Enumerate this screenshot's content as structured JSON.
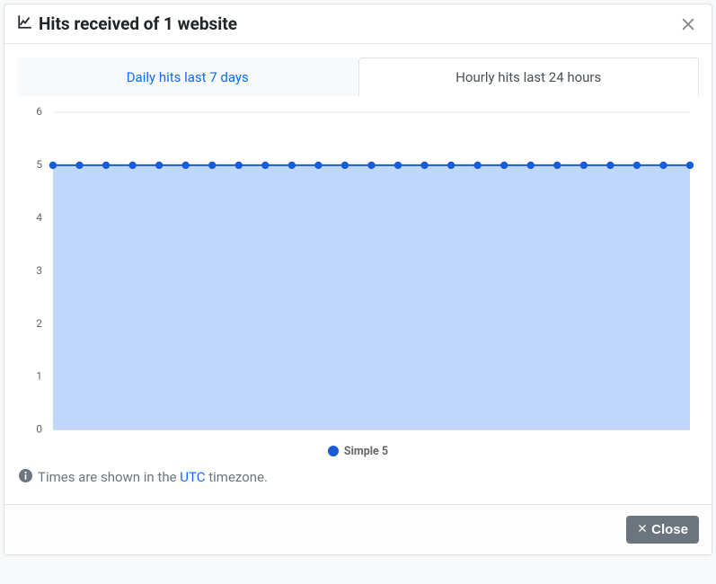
{
  "header": {
    "title": "Hits received of 1 website"
  },
  "tabs": {
    "inactive_label": "Daily hits last 7 days",
    "active_label": "Hourly hits last 24 hours"
  },
  "chart": {
    "type": "area",
    "series_label": "Simple 5",
    "values": [
      5,
      5,
      5,
      5,
      5,
      5,
      5,
      5,
      5,
      5,
      5,
      5,
      5,
      5,
      5,
      5,
      5,
      5,
      5,
      5,
      5,
      5,
      5,
      5,
      5
    ],
    "point_count": 25,
    "ylim": [
      0,
      6
    ],
    "yticks": [
      0,
      1,
      2,
      3,
      4,
      5,
      6
    ],
    "grid_color": "#e9e9e9",
    "line_color": "#195cd9",
    "fill_color": "#bfd7fb",
    "point_color": "#195cd9",
    "background_color": "#ffffff",
    "axis_label_color": "#666666",
    "axis_label_fontsize": 12,
    "line_width": 2,
    "point_radius": 4.2
  },
  "footnote": {
    "prefix": "Times are shown in the ",
    "link_text": "UTC",
    "suffix": " timezone."
  },
  "footer": {
    "close_label": "Close"
  }
}
